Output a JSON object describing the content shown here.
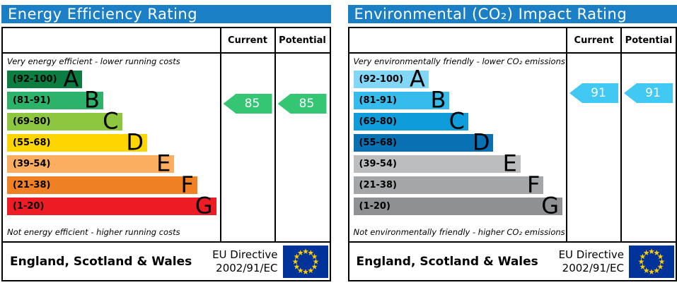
{
  "header_bar_color": "#1b7fc5",
  "eu_flag_colors": {
    "field": "#003399",
    "stars": "#ffcc00"
  },
  "chart_data": [
    {
      "id": "energy-efficiency",
      "type": "bar",
      "title": "Energy Efficiency Rating",
      "column_headers": {
        "current": "Current",
        "potential": "Potential"
      },
      "top_caption": "Very energy efficient - lower running costs",
      "bottom_caption": "Not energy efficient - higher running costs",
      "bands": [
        {
          "range_label": "(92-100)",
          "range": [
            92,
            100
          ],
          "letter": "A",
          "color": "#0b7d41",
          "width_pct": 36
        },
        {
          "range_label": "(81-91)",
          "range": [
            81,
            91
          ],
          "letter": "B",
          "color": "#2cb269",
          "width_pct": 46
        },
        {
          "range_label": "(69-80)",
          "range": [
            69,
            80
          ],
          "letter": "C",
          "color": "#8dc63f",
          "width_pct": 55
        },
        {
          "range_label": "(55-68)",
          "range": [
            55,
            68
          ],
          "letter": "D",
          "color": "#ffd500",
          "width_pct": 67
        },
        {
          "range_label": "(39-54)",
          "range": [
            39,
            54
          ],
          "letter": "E",
          "color": "#fbad60",
          "width_pct": 80
        },
        {
          "range_label": "(21-38)",
          "range": [
            21,
            38
          ],
          "letter": "F",
          "color": "#ef8023",
          "width_pct": 91
        },
        {
          "range_label": "(1-20)",
          "range": [
            1,
            20
          ],
          "letter": "G",
          "color": "#ed1c24",
          "width_pct": 100
        }
      ],
      "current": 85,
      "potential": 85,
      "arrow_color": "#35c673",
      "footer": {
        "region": "England, Scotland & Wales",
        "directive_line1": "EU Directive",
        "directive_line2": "2002/91/EC"
      }
    },
    {
      "id": "environmental-co2-impact",
      "type": "bar",
      "title": "Environmental (CO₂) Impact Rating",
      "column_headers": {
        "current": "Current",
        "potential": "Potential"
      },
      "top_caption": "Very environmentally friendly - lower CO₂ emissions",
      "bottom_caption": "Not environmentally friendly - higher CO₂ emissions",
      "bands": [
        {
          "range_label": "(92-100)",
          "range": [
            92,
            100
          ],
          "letter": "A",
          "color": "#81d7f5",
          "width_pct": 36
        },
        {
          "range_label": "(81-91)",
          "range": [
            81,
            91
          ],
          "letter": "B",
          "color": "#35bbec",
          "width_pct": 46
        },
        {
          "range_label": "(69-80)",
          "range": [
            69,
            80
          ],
          "letter": "C",
          "color": "#0f9cdb",
          "width_pct": 55
        },
        {
          "range_label": "(55-68)",
          "range": [
            55,
            68
          ],
          "letter": "D",
          "color": "#0a70b4",
          "width_pct": 67
        },
        {
          "range_label": "(39-54)",
          "range": [
            39,
            54
          ],
          "letter": "E",
          "color": "#bcbdbf",
          "width_pct": 80
        },
        {
          "range_label": "(21-38)",
          "range": [
            21,
            38
          ],
          "letter": "F",
          "color": "#a5a6a8",
          "width_pct": 91
        },
        {
          "range_label": "(1-20)",
          "range": [
            1,
            20
          ],
          "letter": "G",
          "color": "#8e9092",
          "width_pct": 100
        }
      ],
      "current": 91,
      "potential": 91,
      "arrow_color": "#41c9f4",
      "footer": {
        "region": "England, Scotland & Wales",
        "directive_line1": "EU Directive",
        "directive_line2": "2002/91/EC"
      }
    }
  ]
}
